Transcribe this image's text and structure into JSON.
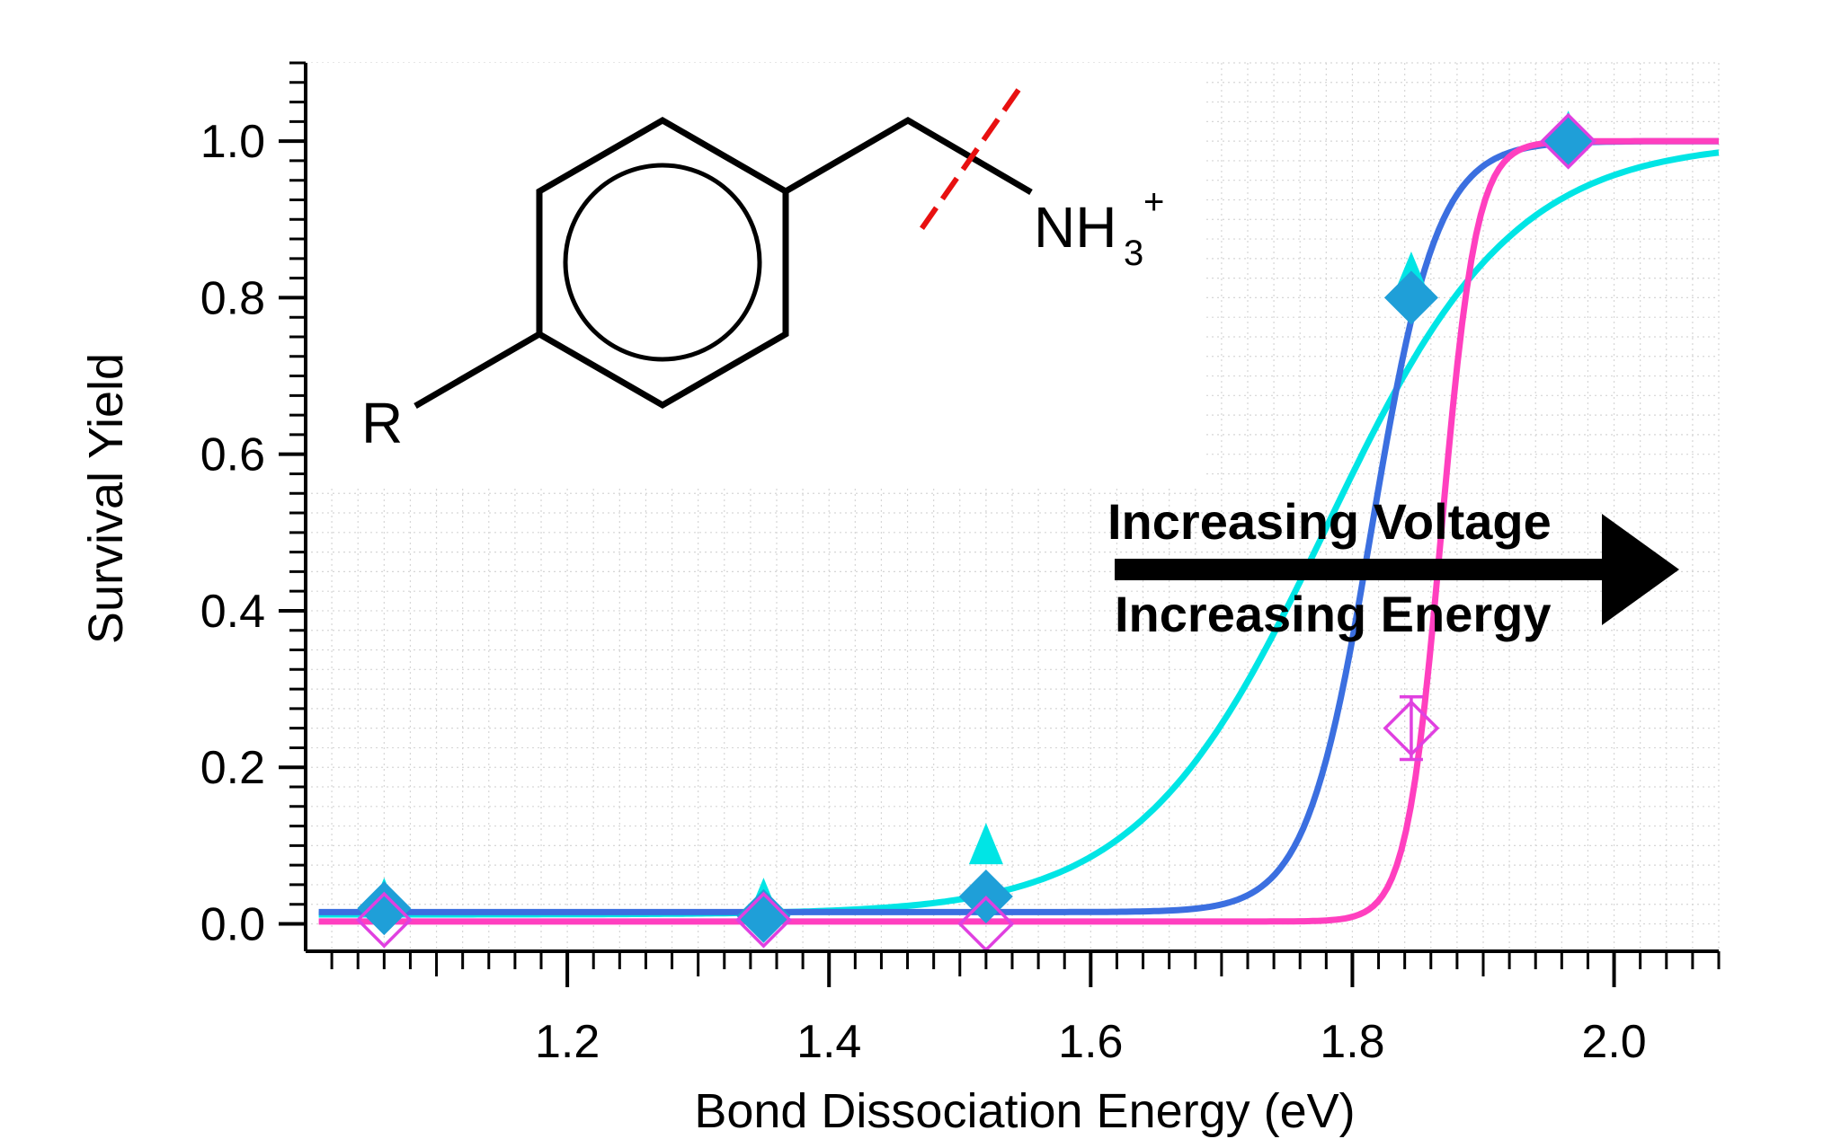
{
  "chart_data": {
    "type": "scatter",
    "xlabel": "Bond Dissociation Energy (eV)",
    "ylabel": "Survival Yield",
    "xlim": [
      1.0,
      2.08
    ],
    "ylim": [
      -0.035,
      1.1
    ],
    "x_ticks": [
      1.2,
      1.4,
      1.6,
      1.8,
      2.0
    ],
    "x_tick_labels": [
      "1.2",
      "1.4",
      "1.6",
      "1.8",
      "2.0"
    ],
    "y_ticks": [
      0.0,
      0.2,
      0.4,
      0.6,
      0.8,
      1.0
    ],
    "y_tick_labels": [
      "0.0",
      "0.2",
      "0.4",
      "0.6",
      "0.8",
      "1.0"
    ],
    "grid": true,
    "annotations": {
      "arrow_top": "Increasing Voltage",
      "arrow_bottom": "Increasing Energy"
    },
    "molecule": {
      "substituent": "R",
      "group_main": "NH",
      "group_sub": "3",
      "group_charge": "+"
    },
    "series": [
      {
        "color": "#00e5e5",
        "marker": "filled-triangle",
        "points": [
          [
            1.06,
            0.02
          ],
          [
            1.35,
            0.02
          ],
          [
            1.52,
            0.09
          ],
          [
            1.845,
            0.82
          ],
          [
            1.965,
            1.0
          ]
        ],
        "fit": {
          "x0": 1.78,
          "k": 14,
          "base": 0.012
        }
      },
      {
        "color": "#3b6fe0",
        "marker": "filled-diamond",
        "marker_color": "#1f9fd8",
        "points": [
          [
            1.06,
            0.02
          ],
          [
            1.35,
            0.01
          ],
          [
            1.52,
            0.035
          ],
          [
            1.845,
            0.8
          ],
          [
            1.965,
            1.0
          ]
        ],
        "fit": {
          "x0": 1.815,
          "k": 40,
          "base": 0.015
        }
      },
      {
        "color": "#ff3fbf",
        "marker": "open-diamond",
        "marker_color": "#e040e0",
        "points": [
          [
            1.06,
            0.005
          ],
          [
            1.35,
            0.005
          ],
          [
            1.52,
            0.0
          ],
          [
            1.845,
            0.25
          ],
          [
            1.965,
            1.0
          ]
        ],
        "error_bar": {
          "x": 1.845,
          "low": 0.21,
          "high": 0.29
        },
        "fit": {
          "x0": 1.868,
          "k": 75,
          "base": 0.003
        }
      }
    ]
  }
}
